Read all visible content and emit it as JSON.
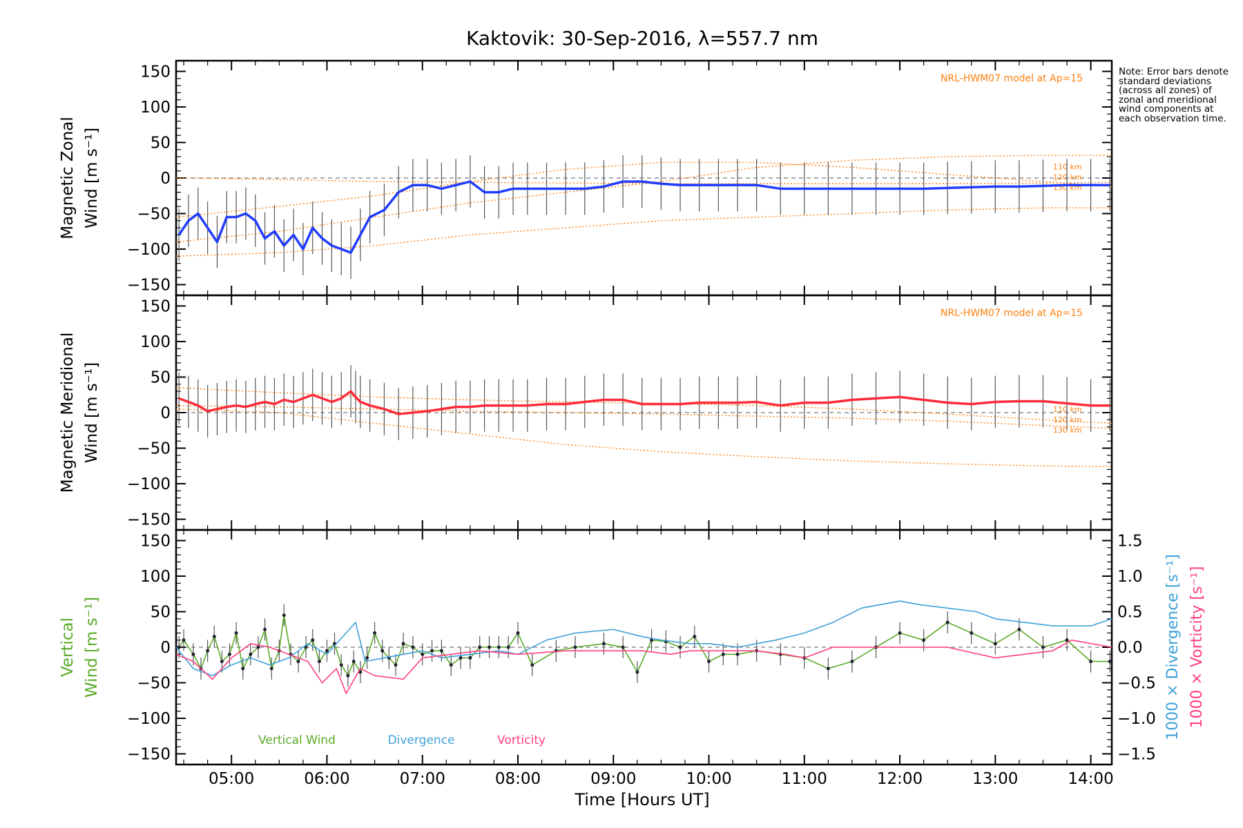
{
  "chart_data": {
    "type": "line",
    "title": "Kaktovik: 30-Sep-2016, λ=557.7 nm",
    "xlabel": "Time [Hours UT]",
    "x_ticks": [
      "05:00",
      "06:00",
      "07:00",
      "08:00",
      "09:00",
      "10:00",
      "11:00",
      "12:00",
      "13:00",
      "14:00"
    ],
    "xlim": [
      4.42,
      14.22
    ],
    "note": "Note: Error bars denote standard deviations (across all zones) of zonal and meridional wind components at each observation time.",
    "panels": [
      {
        "ylabel_line1": "Magnetic Zonal",
        "ylabel_line2": "Wind [m s⁻¹]",
        "ylim": [
          -165,
          165
        ],
        "y_ticks": [
          "150",
          "100",
          "50",
          "0",
          "−50",
          "−100",
          "−150"
        ],
        "model_label": "NRL-HWM07 model at Ap=15",
        "altitude_labels": [
          "110 km",
          "120 km",
          "130 km"
        ],
        "series": [
          {
            "color": "#1f3cff",
            "x": [
              4.45,
              4.55,
              4.65,
              4.75,
              4.85,
              4.95,
              5.05,
              5.15,
              5.25,
              5.35,
              5.45,
              5.55,
              5.65,
              5.75,
              5.85,
              5.95,
              6.05,
              6.15,
              6.25,
              6.35,
              6.45,
              6.6,
              6.75,
              6.9,
              7.05,
              7.2,
              7.35,
              7.5,
              7.65,
              7.8,
              7.95,
              8.1,
              8.3,
              8.5,
              8.7,
              8.9,
              9.1,
              9.3,
              9.5,
              9.7,
              9.9,
              10.1,
              10.3,
              10.5,
              10.75,
              11.0,
              11.25,
              11.5,
              11.75,
              12.0,
              12.25,
              12.5,
              12.75,
              13.0,
              13.25,
              13.5,
              13.75,
              14.0,
              14.2
            ],
            "y": [
              -80,
              -60,
              -50,
              -70,
              -90,
              -55,
              -55,
              -50,
              -60,
              -85,
              -75,
              -95,
              -80,
              -100,
              -70,
              -85,
              -95,
              -100,
              -105,
              -80,
              -55,
              -45,
              -20,
              -10,
              -10,
              -15,
              -10,
              -5,
              -20,
              -20,
              -15,
              -15,
              -15,
              -15,
              -15,
              -12,
              -5,
              -5,
              -8,
              -10,
              -10,
              -10,
              -10,
              -10,
              -15,
              -15,
              -15,
              -15,
              -15,
              -15,
              -15,
              -14,
              -13,
              -12,
              -12,
              -11,
              -10,
              -10,
              -10
            ]
          }
        ],
        "model_curves": [
          {
            "color": "#ff7f0e",
            "x": [
              4.42,
              5.5,
              6.5,
              7.5,
              8.5,
              9.5,
              10.5,
              11.5,
              12.5,
              13.5,
              14.22
            ],
            "y": [
              0,
              -2,
              -5,
              -6,
              -7,
              -8,
              -8,
              -8,
              -8,
              -7,
              -6
            ]
          },
          {
            "color": "#ff7f0e",
            "x": [
              4.42,
              5.5,
              6.5,
              7.5,
              8.5,
              9.5,
              10.5,
              11.5,
              12.5,
              13.5,
              14.22
            ],
            "y": [
              -55,
              -40,
              -25,
              -5,
              12,
              22,
              22,
              15,
              5,
              -5,
              -12
            ]
          },
          {
            "color": "#ff7f0e",
            "x": [
              4.42,
              5.5,
              6.5,
              7.5,
              8.5,
              9.5,
              10.5,
              11.5,
              12.5,
              13.5,
              14.22
            ],
            "y": [
              -90,
              -75,
              -55,
              -35,
              -20,
              -5,
              15,
              25,
              30,
              32,
              32
            ]
          },
          {
            "color": "#ff7f0e",
            "x": [
              4.42,
              5.5,
              6.5,
              7.5,
              8.5,
              9.5,
              10.5,
              11.5,
              12.5,
              13.5,
              14.22
            ],
            "y": [
              -110,
              -105,
              -95,
              -80,
              -70,
              -60,
              -55,
              -50,
              -45,
              -42,
              -42
            ]
          }
        ]
      },
      {
        "ylabel_line1": "Magnetic Meridional",
        "ylabel_line2": "Wind [m s⁻¹]",
        "ylim": [
          -165,
          165
        ],
        "y_ticks": [
          "150",
          "100",
          "50",
          "0",
          "−50",
          "−100",
          "−150"
        ],
        "model_label": "NRL-HWM07 model at Ap=15",
        "altitude_labels": [
          "110 km",
          "120 km",
          "130 km"
        ],
        "series": [
          {
            "color": "#ff2b3a",
            "x": [
              4.45,
              4.55,
              4.65,
              4.75,
              4.85,
              4.95,
              5.05,
              5.15,
              5.25,
              5.35,
              5.45,
              5.55,
              5.65,
              5.75,
              5.85,
              5.95,
              6.05,
              6.15,
              6.25,
              6.3,
              6.35,
              6.45,
              6.6,
              6.75,
              6.9,
              7.05,
              7.2,
              7.35,
              7.5,
              7.65,
              7.8,
              7.95,
              8.1,
              8.3,
              8.5,
              8.7,
              8.9,
              9.1,
              9.3,
              9.5,
              9.7,
              9.9,
              10.1,
              10.3,
              10.5,
              10.75,
              11.0,
              11.25,
              11.5,
              11.75,
              12.0,
              12.25,
              12.5,
              12.75,
              13.0,
              13.25,
              13.5,
              13.75,
              14.0,
              14.2
            ],
            "y": [
              20,
              15,
              10,
              2,
              5,
              8,
              10,
              8,
              12,
              15,
              12,
              18,
              15,
              20,
              25,
              20,
              15,
              20,
              30,
              22,
              15,
              10,
              5,
              -2,
              0,
              2,
              5,
              8,
              8,
              10,
              10,
              10,
              10,
              12,
              12,
              15,
              18,
              18,
              12,
              12,
              12,
              14,
              14,
              14,
              15,
              10,
              14,
              14,
              18,
              20,
              22,
              18,
              14,
              12,
              15,
              16,
              16,
              13,
              10,
              10
            ]
          }
        ],
        "model_curves": [
          {
            "color": "#ff7f0e",
            "x": [
              4.42,
              5.5,
              6.5,
              7.5,
              8.5,
              9.5,
              10.5,
              11.5,
              12.5,
              13.5,
              14.22
            ],
            "y": [
              35,
              28,
              22,
              18,
              15,
              13,
              10,
              5,
              -2,
              -10,
              -15
            ]
          },
          {
            "color": "#ff7f0e",
            "x": [
              4.42,
              5.5,
              6.5,
              7.5,
              8.5,
              9.5,
              10.5,
              11.5,
              12.5,
              13.5,
              14.22
            ],
            "y": [
              10,
              8,
              5,
              2,
              0,
              -2,
              -5,
              -8,
              -12,
              -18,
              -22
            ]
          },
          {
            "color": "#ff7f0e",
            "x": [
              4.42,
              5.5,
              6.5,
              7.5,
              8.5,
              9.5,
              10.5,
              11.5,
              12.5,
              13.5,
              14.22
            ],
            "y": [
              5,
              0,
              -15,
              -30,
              -45,
              -55,
              -62,
              -68,
              -72,
              -75,
              -76
            ]
          }
        ]
      },
      {
        "ylabel_line1": "Vertical",
        "ylabel_line2": "Wind [m s⁻¹]",
        "ylabel_color": "#5aaa27",
        "ylim": [
          -165,
          165
        ],
        "y_ticks": [
          "150",
          "100",
          "50",
          "0",
          "−50",
          "−100",
          "−150"
        ],
        "right_axis": {
          "ylim": [
            -1.65,
            1.65
          ],
          "ticks": [
            "1.5",
            "1.0",
            "0.5",
            "0.0",
            "−0.5",
            "−1.0",
            "−1.5"
          ],
          "label_div": "1000 × Divergence [s⁻¹]",
          "label_vort": "1000 × Vorticity [s⁻¹]"
        },
        "legend": [
          "Vertical Wind",
          "Divergence",
          "Vorticity"
        ],
        "series": [
          {
            "name": "Vertical Wind",
            "color": "#5aaa27",
            "x": [
              4.45,
              4.5,
              4.6,
              4.68,
              4.75,
              4.82,
              4.9,
              4.98,
              5.05,
              5.12,
              5.2,
              5.28,
              5.35,
              5.42,
              5.5,
              5.55,
              5.62,
              5.7,
              5.78,
              5.85,
              5.92,
              6.0,
              6.08,
              6.15,
              6.22,
              6.28,
              6.35,
              6.42,
              6.5,
              6.58,
              6.65,
              6.72,
              6.8,
              6.9,
              7.0,
              7.1,
              7.2,
              7.3,
              7.4,
              7.5,
              7.6,
              7.7,
              7.8,
              7.9,
              8.0,
              8.15,
              8.4,
              8.6,
              8.9,
              9.1,
              9.25,
              9.4,
              9.55,
              9.7,
              9.85,
              10.0,
              10.15,
              10.3,
              10.5,
              10.75,
              11.0,
              11.25,
              11.5,
              11.75,
              12.0,
              12.25,
              12.5,
              12.75,
              13.0,
              13.25,
              13.5,
              13.75,
              14.0,
              14.2
            ],
            "y": [
              0,
              10,
              -10,
              -30,
              -5,
              15,
              -20,
              -10,
              20,
              -30,
              -10,
              0,
              25,
              -30,
              -5,
              45,
              -10,
              -20,
              0,
              10,
              -20,
              -5,
              5,
              -25,
              -40,
              -20,
              -35,
              -15,
              20,
              -5,
              -15,
              -25,
              5,
              0,
              -10,
              -5,
              -5,
              -25,
              -15,
              -15,
              0,
              0,
              0,
              0,
              20,
              -25,
              -5,
              0,
              5,
              0,
              -35,
              10,
              8,
              0,
              15,
              -20,
              -10,
              -10,
              -5,
              -10,
              -15,
              -30,
              -20,
              0,
              20,
              10,
              35,
              20,
              5,
              25,
              0,
              10,
              -20,
              -20
            ]
          },
          {
            "name": "Divergence",
            "color": "#3da0d8",
            "x": [
              4.42,
              4.6,
              4.8,
              5.0,
              5.2,
              5.4,
              5.6,
              5.8,
              6.0,
              6.2,
              6.3,
              6.4,
              6.6,
              6.8,
              7.0,
              7.2,
              7.5,
              7.8,
              8.0,
              8.3,
              8.6,
              9.0,
              9.3,
              9.5,
              9.8,
              10.0,
              10.3,
              10.5,
              10.7,
              11.0,
              11.3,
              11.6,
              11.8,
              12.0,
              12.2,
              12.5,
              12.8,
              13.0,
              13.3,
              13.6,
              14.0,
              14.22
            ],
            "y": [
              0.0,
              -0.3,
              -0.4,
              -0.25,
              -0.15,
              -0.25,
              -0.15,
              0.05,
              -0.1,
              0.2,
              0.35,
              -0.2,
              -0.15,
              -0.1,
              -0.05,
              -0.15,
              -0.1,
              -0.05,
              -0.1,
              0.1,
              0.2,
              0.25,
              0.15,
              0.1,
              0.05,
              0.05,
              0.0,
              0.05,
              0.1,
              0.2,
              0.35,
              0.55,
              0.6,
              0.65,
              0.6,
              0.55,
              0.5,
              0.4,
              0.35,
              0.3,
              0.3,
              0.4
            ]
          },
          {
            "name": "Vorticity",
            "color": "#ff3d7f",
            "x": [
              4.42,
              4.6,
              4.8,
              5.0,
              5.2,
              5.4,
              5.6,
              5.8,
              5.95,
              6.1,
              6.2,
              6.35,
              6.5,
              6.8,
              7.0,
              7.3,
              7.6,
              8.0,
              8.5,
              9.0,
              9.3,
              9.6,
              9.8,
              10.0,
              10.5,
              10.8,
              11.0,
              11.3,
              11.6,
              12.0,
              12.5,
              13.0,
              13.3,
              13.6,
              13.8,
              14.22
            ],
            "y": [
              -0.1,
              -0.2,
              -0.45,
              -0.15,
              0.05,
              0.0,
              -0.1,
              -0.2,
              -0.5,
              -0.3,
              -0.65,
              -0.3,
              -0.4,
              -0.45,
              -0.15,
              -0.1,
              -0.05,
              -0.1,
              -0.05,
              -0.05,
              -0.05,
              -0.1,
              -0.05,
              -0.05,
              -0.05,
              -0.1,
              -0.15,
              0.0,
              0.0,
              0.0,
              0.0,
              -0.15,
              -0.1,
              -0.05,
              0.1,
              0.0
            ]
          }
        ]
      }
    ]
  }
}
